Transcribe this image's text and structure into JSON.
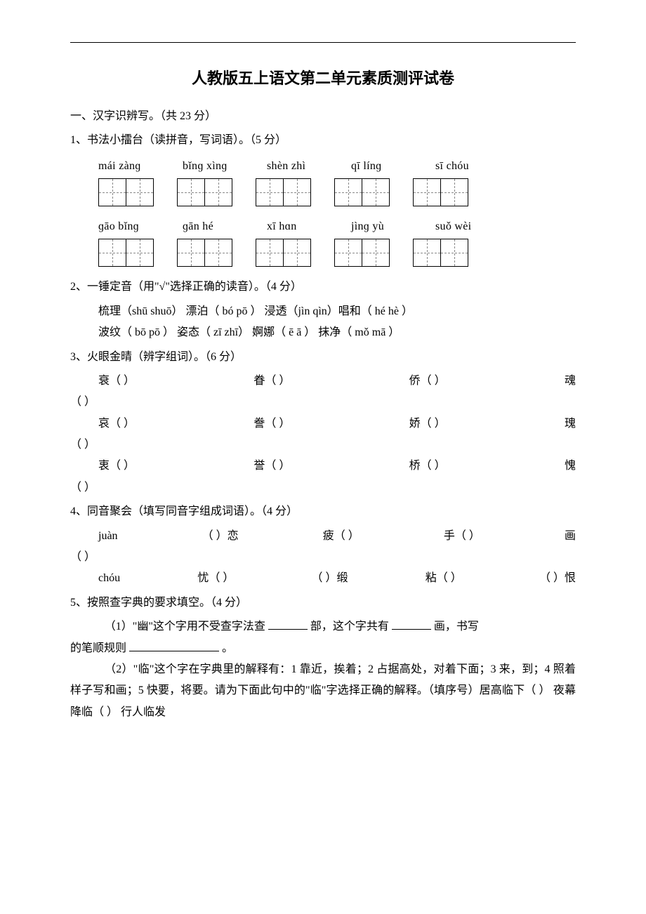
{
  "title": "人教版五上语文第二单元素质测评试卷",
  "s1": {
    "head": "一、汉字识辨写。（共 23 分）",
    "q1": {
      "stem": "1、书法小擂台（读拼音，写词语）。（5 分）",
      "row1": [
        "mái zànɡ",
        "bǐnɡ xìnɡ",
        "shèn zhì",
        "qī línɡ",
        "sī chóu"
      ],
      "row2": [
        "ɡāo bǐnɡ",
        "ɡān hé",
        "xī hɑn",
        "jìnɡ yù",
        "suǒ wèi"
      ]
    },
    "q2": {
      "stem": "2、一锤定音（用\"√\"选择正确的读音）。（4 分）",
      "line1": "梳理（shū shuō）  漂泊（ bó pō ）  浸透（jìn qìn）唱和（ hé   hè ）",
      "line2": "波纹（ bō pō ）  姿态（ zī  zhī）  婀娜（ ē  ā ）  抹净（ mǒ  mā  ）"
    },
    "q3": {
      "stem": "3、火眼金晴（辨字组词）。（6 分）",
      "rows": [
        [
          "衰（",
          "眷（",
          "侨（",
          "魂"
        ],
        [
          "哀（",
          "誊（",
          "娇（",
          "瑰"
        ],
        [
          "衷（",
          "誉（",
          "桥（",
          "愧"
        ]
      ],
      "tail": "（            ）"
    },
    "q4": {
      "stem": "4、同音聚会（填写同音字组成词语）。（4 分）",
      "l1a": "juàn",
      "l1b": "（        ）恋",
      "l1c": "疲（        ）",
      "l1d": "手（        ）",
      "l1e": "画",
      "l1tail": "（            ）",
      "l2a": "chóu",
      "l2b": "忧（        ）",
      "l2c": "（        ）缎",
      "l2d": "粘（        ）",
      "l2e": "（        ）恨"
    },
    "q5": {
      "stem": " 5、按照查字典的要求填空。（4 分）",
      "p1a": "（1）\"幽\"这个字用不受查字法查",
      "p1b": "部，这个字共有",
      "p1c": "画，书写",
      "p1d": "的笔顺规则",
      "p1e": "。",
      "p2": "（2）\"临\"这个字在字典里的解释有：1 靠近，挨着；2 占据高处，对着下面；3 来，到；4 照着样子写和画；5 快要，将要。请为下面此句中的\"临\"字选择正确的解释。（填序号）居高临下（     ）     夜幕降临（     ）   行人临发"
    }
  }
}
